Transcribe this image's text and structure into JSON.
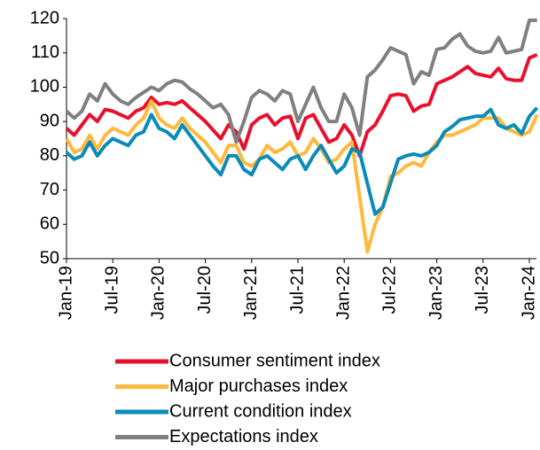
{
  "chart_data": {
    "type": "line",
    "categories": [
      "Jan-19",
      null,
      null,
      null,
      null,
      null,
      "Jul-19",
      null,
      null,
      null,
      null,
      null,
      "Jan-20",
      null,
      null,
      null,
      null,
      null,
      "Jul-20",
      null,
      null,
      null,
      null,
      null,
      "Jan-21",
      null,
      null,
      null,
      null,
      null,
      "Jul-21",
      null,
      null,
      null,
      null,
      null,
      "Jan-22",
      null,
      null,
      null,
      null,
      null,
      "Jul-22",
      null,
      null,
      null,
      null,
      null,
      "Jan-23",
      null,
      null,
      null,
      null,
      null,
      "Jul-23",
      null,
      null,
      null,
      null,
      null,
      "Jan-24",
      null
    ],
    "series": [
      {
        "name": "Consumer sentiment index",
        "color": "#e8112d",
        "values": [
          88,
          86,
          89,
          92,
          90,
          93.5,
          93,
          92,
          91,
          93,
          94,
          97,
          95,
          95.5,
          95,
          96,
          94,
          92,
          90,
          87.5,
          85,
          89,
          87,
          82,
          89,
          91,
          92,
          89,
          91,
          91.5,
          85,
          91,
          92,
          88,
          84,
          85,
          89,
          86,
          80,
          87,
          89,
          93,
          97.5,
          98,
          97.5,
          93,
          94.5,
          95,
          101,
          102,
          103,
          104.5,
          106,
          104,
          103.5,
          103,
          105.5,
          102.5,
          102,
          102,
          108.5,
          109.5
        ]
      },
      {
        "name": "Major purchases index",
        "color": "#ffb93c",
        "values": [
          85,
          81,
          82,
          86,
          82,
          86,
          88,
          87,
          86,
          89,
          91,
          96,
          91,
          89,
          88,
          91,
          88,
          86,
          84,
          81,
          78,
          83,
          83,
          78,
          77,
          79,
          83,
          81,
          82,
          84,
          80,
          81,
          85,
          82,
          78,
          79,
          82,
          84,
          68,
          52,
          60,
          65,
          74,
          75,
          77,
          78,
          77,
          81,
          84,
          86,
          86,
          87,
          88,
          89,
          91,
          91,
          91,
          88,
          87,
          86,
          87,
          92
        ]
      },
      {
        "name": "Current condition index",
        "color": "#0a8bb8",
        "values": [
          81,
          79,
          80,
          84,
          80,
          83,
          85,
          84,
          83,
          86,
          87,
          92,
          88,
          87,
          85,
          89,
          86,
          83,
          80,
          77,
          74.5,
          80,
          80,
          76,
          74.5,
          79,
          80,
          78,
          76,
          79,
          80,
          76,
          80,
          83,
          79,
          75,
          77,
          82,
          81,
          72,
          63,
          65,
          72,
          79,
          80,
          80.5,
          80,
          81,
          83,
          87,
          88.5,
          90.5,
          91,
          91.5,
          91.5,
          93.5,
          89,
          88,
          89,
          86.5,
          91.5,
          94
        ]
      },
      {
        "name": "Expectations index",
        "color": "#808080",
        "values": [
          93,
          91,
          93,
          98,
          96,
          101,
          98,
          96,
          95,
          97,
          98.5,
          100,
          99,
          101,
          102,
          101.5,
          99.5,
          98,
          96,
          94,
          95,
          92,
          84,
          90,
          97,
          99,
          98,
          96,
          99,
          98,
          90,
          95,
          100,
          94,
          90,
          90,
          98,
          94,
          86,
          103,
          105,
          108,
          111.5,
          110.5,
          109.5,
          101,
          104.5,
          103.5,
          111,
          111.5,
          114,
          115.5,
          112,
          110.5,
          110,
          110.5,
          114.5,
          110,
          110.5,
          111,
          119.5,
          119.5
        ]
      }
    ],
    "ylim": [
      50,
      120
    ],
    "yticks": [
      50,
      60,
      70,
      80,
      90,
      100,
      110,
      120
    ],
    "grid": false,
    "legend": "bottom"
  }
}
